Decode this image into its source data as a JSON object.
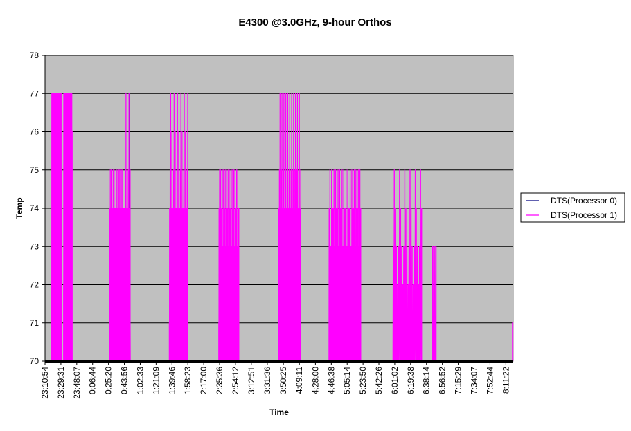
{
  "chart_data": {
    "type": "line",
    "title": "E4300 @3.0GHz, 9-hour Orthos",
    "xlabel": "Time",
    "ylabel": "Temp",
    "ylim": [
      70,
      78
    ],
    "yticks": [
      70,
      71,
      72,
      73,
      74,
      75,
      76,
      77,
      78
    ],
    "xlim": [
      "23:10:54",
      "8:20:00"
    ],
    "xticks": [
      "23:10:54",
      "23:29:31",
      "23:48:07",
      "0:06:44",
      "0:25:20",
      "0:43:56",
      "1:02:33",
      "1:21:09",
      "1:39:46",
      "1:58:23",
      "2:17:00",
      "2:35:36",
      "2:54:12",
      "3:12:51",
      "3:31:36",
      "3:50:25",
      "4:09:11",
      "4:28:00",
      "4:46:38",
      "5:05:14",
      "5:23:50",
      "5:42:26",
      "6:01:02",
      "6:19:38",
      "6:38:14",
      "6:56:52",
      "7:15:29",
      "7:34:07",
      "7:52:44",
      "8:11:22"
    ],
    "grid": true,
    "legend_position": "right",
    "plot_background": "#c0c0c0",
    "series": [
      {
        "name": "DTS(Processor 0)",
        "color": "#000080",
        "points": [
          [
            "23:10:54",
            70
          ],
          [
            "23:19:00",
            70
          ],
          [
            "23:19:40",
            72
          ],
          [
            "23:20:30",
            71
          ],
          [
            "23:21:40",
            72
          ],
          [
            "23:22:40",
            71
          ],
          [
            "23:23:30",
            72
          ],
          [
            "23:24:30",
            70
          ],
          [
            "0:43:00",
            70
          ],
          [
            "0:43:10",
            71
          ],
          [
            "0:43:30",
            70
          ],
          [
            "0:46:40",
            70
          ],
          [
            "0:46:50",
            72
          ],
          [
            "0:47:10",
            70
          ],
          [
            "0:49:20",
            70
          ],
          [
            "0:49:30",
            77
          ],
          [
            "0:49:50",
            70
          ],
          [
            "1:58:00",
            70
          ],
          [
            "1:58:10",
            71
          ],
          [
            "1:58:30",
            70
          ],
          [
            "2:54:00",
            70
          ],
          [
            "2:54:10",
            72
          ],
          [
            "2:54:30",
            70
          ],
          [
            "3:50:00",
            70
          ],
          [
            "3:50:10",
            71
          ],
          [
            "3:50:30",
            70
          ],
          [
            "4:06:00",
            70
          ],
          [
            "4:06:10",
            71
          ],
          [
            "4:06:30",
            70
          ],
          [
            "8:20:00",
            70
          ]
        ]
      },
      {
        "name": "DTS(Processor 1)",
        "color": "#ff00ff",
        "bursts": [
          {
            "start": "23:18:30",
            "end": "23:30:30",
            "segments": 54,
            "levels": [
              72,
              77,
              73,
              77,
              71,
              75,
              72,
              77,
              73,
              76,
              72,
              77,
              74,
              77,
              72,
              75
            ]
          },
          {
            "start": "23:32:30",
            "end": "23:43:00",
            "segments": 46,
            "levels": [
              72,
              77,
              73,
              76,
              72,
              77,
              75,
              77,
              72,
              76,
              73,
              77
            ]
          },
          {
            "start": "0:26:30",
            "end": "0:44:00",
            "segments": 62,
            "levels": [
              72,
              74,
              73,
              75,
              72,
              74,
              73,
              75,
              72,
              74,
              73,
              74
            ]
          },
          {
            "start": "0:44:00",
            "end": "0:51:00",
            "segments": 20,
            "levels": [
              72,
              74,
              71,
              75,
              72,
              77,
              73,
              74,
              72,
              75
            ]
          },
          {
            "start": "1:36:30",
            "end": "1:58:30",
            "segments": 66,
            "levels": [
              71,
              74,
              72,
              75,
              73,
              77,
              71,
              74,
              72,
              76,
              71,
              74
            ]
          },
          {
            "start": "2:34:30",
            "end": "2:58:30",
            "segments": 72,
            "levels": [
              71,
              74,
              72,
              75,
              71,
              73,
              72,
              75,
              71,
              74
            ]
          },
          {
            "start": "3:44:30",
            "end": "4:11:00",
            "segments": 70,
            "levels": [
              70,
              74,
              71,
              75,
              72,
              77,
              70,
              74,
              71,
              75,
              70,
              77
            ]
          },
          {
            "start": "4:43:30",
            "end": "5:21:30",
            "segments": 80,
            "levels": [
              70,
              74,
              71,
              75,
              70,
              73,
              71,
              75,
              70,
              74
            ]
          },
          {
            "start": "5:58:30",
            "end": "6:33:00",
            "segments": 56,
            "levels": [
              70,
              73,
              71,
              75,
              70,
              74,
              71,
              73,
              70,
              72
            ]
          },
          {
            "start": "6:44:30",
            "end": "6:50:00",
            "segments": 8,
            "levels": [
              70,
              73,
              71,
              73
            ]
          },
          {
            "start": "8:19:00",
            "end": "8:20:00",
            "segments": 2,
            "levels": [
              71
            ]
          }
        ]
      }
    ]
  }
}
